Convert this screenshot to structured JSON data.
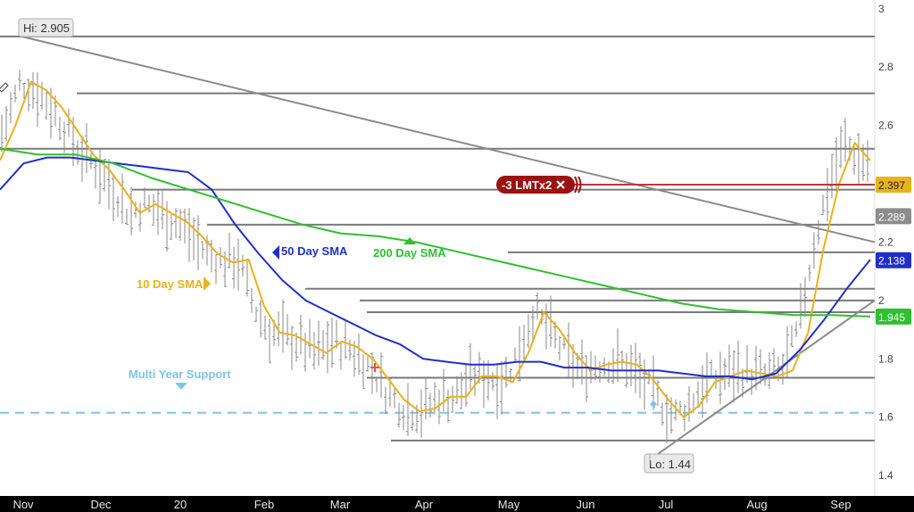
{
  "colors": {
    "bars": "#888888",
    "sma10": "#e8b21a",
    "sma50": "#1f2fc8",
    "sma200": "#2ec02e",
    "support": "#7fc4ea",
    "levels": "#7a7a7a",
    "trend": "#8a8a8a",
    "order": "#9b1111",
    "xaxis_bg": "#000000"
  },
  "icons": {
    "close": "close-icon",
    "pencil": "pencil-icon"
  },
  "chart_data": {
    "type": "ohlc",
    "y_axis": {
      "position": "right",
      "range": [
        1.33,
        3.03
      ],
      "ticks": [
        "3",
        "2.8",
        "2.6",
        "2.4",
        "2.2",
        "2",
        "1.8",
        "1.6",
        "1.4"
      ]
    },
    "x_axis": {
      "ticks": [
        "Nov",
        "Dec",
        "20",
        "Feb",
        "Mar",
        "Apr",
        "May",
        "Jun",
        "Jul",
        "Aug",
        "Sep"
      ]
    },
    "price_markers": [
      {
        "name": "price",
        "value": 2.397,
        "label": "2.397",
        "color": "#e8b21a"
      },
      {
        "name": "last",
        "value": 2.289,
        "label": "2.289",
        "color": "#8c8c8c"
      },
      {
        "name": "sma50",
        "value": 2.138,
        "label": "2.138",
        "color": "#1f2fc8"
      },
      {
        "name": "sma200",
        "value": 1.945,
        "label": "1.945",
        "color": "#2ec02e"
      }
    ],
    "extremes": {
      "high": {
        "label": "Hi: 2.905",
        "value": 2.905
      },
      "low": {
        "label": "Lo: 1.44",
        "value": 1.44
      }
    },
    "order": {
      "label": "-3 LMTx2",
      "price": 2.397
    },
    "annotations": {
      "sma10": "10 Day SMA",
      "sma50": "50 Day SMA",
      "sma200": "200 Day SMA",
      "support": "Multi Year Support"
    },
    "support_level": 1.615,
    "horizontal_levels": [
      2.905,
      2.71,
      2.52,
      2.38,
      2.26,
      2.165,
      2.04,
      2.0,
      1.96,
      1.735,
      1.52
    ],
    "trendlines": [
      {
        "name": "downtrend",
        "from": {
          "x": "Nov",
          "y": 2.905
        },
        "to": {
          "x": "Sep",
          "y": 2.2
        }
      },
      {
        "name": "uptrend",
        "from": {
          "x": "Jul",
          "y": 1.45
        },
        "to": {
          "x": "Sep",
          "y": 2.0
        }
      }
    ],
    "series": [
      {
        "name": "10 Day SMA",
        "values": [
          2.48,
          2.6,
          2.75,
          2.72,
          2.66,
          2.58,
          2.5,
          2.45,
          2.38,
          2.3,
          2.33,
          2.3,
          2.27,
          2.22,
          2.16,
          2.13,
          2.14,
          1.98,
          1.89,
          1.88,
          1.85,
          1.82,
          1.86,
          1.84,
          1.8,
          1.73,
          1.66,
          1.62,
          1.63,
          1.67,
          1.67,
          1.74,
          1.74,
          1.72,
          1.82,
          1.96,
          1.9,
          1.82,
          1.76,
          1.78,
          1.79,
          1.78,
          1.73,
          1.66,
          1.6,
          1.64,
          1.72,
          1.74,
          1.76,
          1.75,
          1.74,
          1.76,
          1.89,
          2.18,
          2.4,
          2.54,
          2.48
        ]
      },
      {
        "name": "50 Day SMA",
        "values": [
          2.38,
          2.47,
          2.49,
          2.49,
          2.48,
          2.47,
          2.46,
          2.45,
          2.44,
          2.38,
          2.26,
          2.16,
          2.07,
          2.0,
          1.96,
          1.92,
          1.88,
          1.85,
          1.8,
          1.79,
          1.78,
          1.78,
          1.79,
          1.79,
          1.77,
          1.77,
          1.76,
          1.76,
          1.76,
          1.75,
          1.74,
          1.74,
          1.73,
          1.75,
          1.83,
          1.93,
          2.04,
          2.14
        ]
      },
      {
        "name": "200 Day SMA",
        "values": [
          2.52,
          2.5,
          2.5,
          2.47,
          2.42,
          2.38,
          2.34,
          2.3,
          2.26,
          2.23,
          2.22,
          2.2,
          2.17,
          2.14,
          2.11,
          2.08,
          2.05,
          2.02,
          1.99,
          1.97,
          1.96,
          1.95,
          1.95,
          1.945
        ]
      }
    ]
  }
}
